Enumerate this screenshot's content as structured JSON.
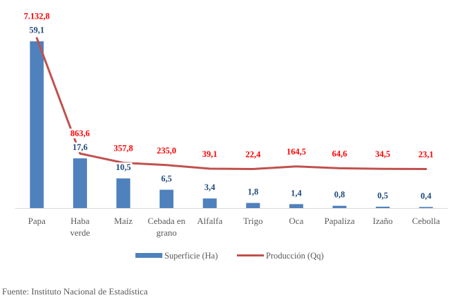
{
  "chart_data": {
    "type": "bar",
    "combo": "bar-line",
    "title": "",
    "xlabel": "",
    "ylabel": "",
    "categories": [
      "Papa",
      "Haba verde",
      "Maíz",
      "Cebada en grano",
      "Alfalfa",
      "Trigo",
      "Oca",
      "Papaliza",
      "Izaño",
      "Cebolla"
    ],
    "category_lines": [
      [
        "Papa"
      ],
      [
        "Haba",
        "verde"
      ],
      [
        "Maíz"
      ],
      [
        "Cebada en",
        "grano"
      ],
      [
        "Alfalfa"
      ],
      [
        "Trigo"
      ],
      [
        "Oca"
      ],
      [
        "Papaliza"
      ],
      [
        "Izaño"
      ],
      [
        "Cebolla"
      ]
    ],
    "ylim": [
      0,
      60
    ],
    "y2lim": [
      -2100,
      7100
    ],
    "grid": false,
    "axes_visible": false,
    "legend": "bottom",
    "series": [
      {
        "name": "Superficie (Ha)",
        "type": "bar",
        "axis": "primary",
        "color": "#4F81BD",
        "label_color": "#1F497D",
        "values": [
          59.1,
          17.6,
          10.5,
          6.5,
          3.4,
          1.8,
          1.4,
          0.8,
          0.5,
          0.4
        ],
        "data_labels": [
          "59,1",
          "17,6",
          "10,5",
          "6,5",
          "3,4",
          "1,8",
          "1,4",
          "0,8",
          "0,5",
          "0,4"
        ]
      },
      {
        "name": "Producción (Qq)",
        "type": "line",
        "axis": "secondary",
        "color": "#C0504D",
        "label_color": "#FF0000",
        "values": [
          7132.8,
          863.6,
          357.8,
          235.0,
          39.1,
          22.4,
          164.5,
          64.6,
          34.5,
          23.1
        ],
        "data_labels": [
          "7.132,8",
          "863,6",
          "357,8",
          "235,0",
          "39,1",
          "22,4",
          "164,5",
          "64,6",
          "34,5",
          "23,1"
        ]
      }
    ]
  },
  "axis_color": "#D9D9D9",
  "source": "Fuente: Instituto Nacional de Estadística"
}
